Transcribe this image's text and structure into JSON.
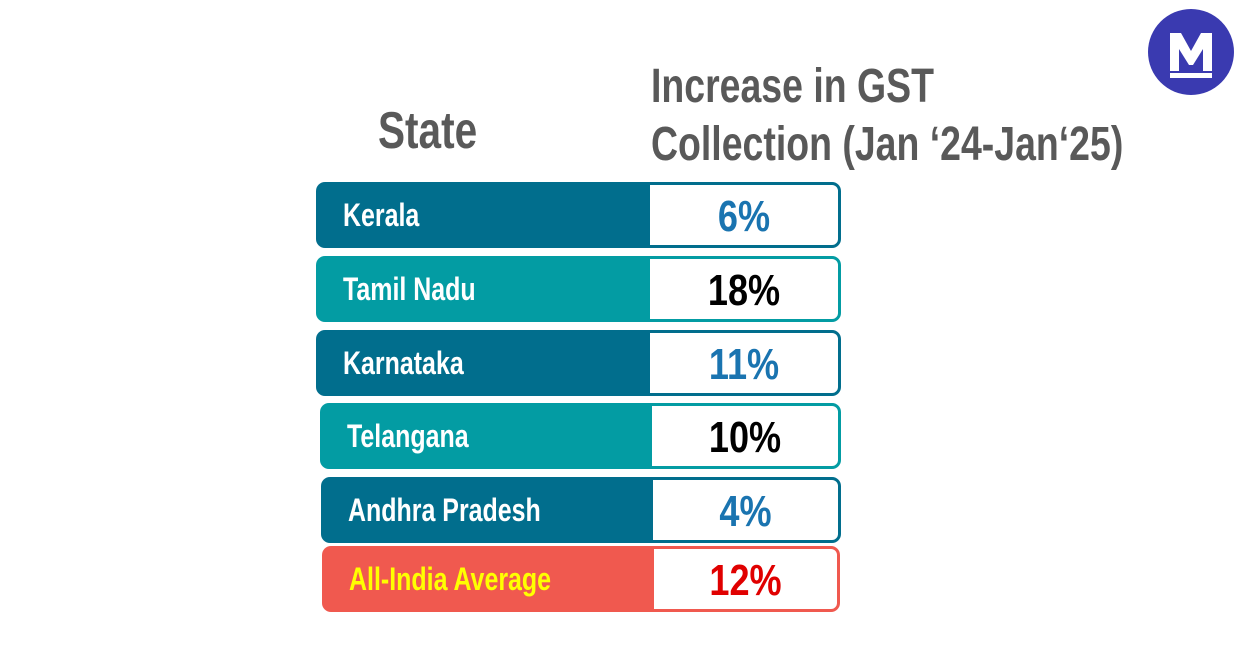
{
  "header": {
    "state_label": "State",
    "gst_label_line1": "Increase in GST",
    "gst_label_line2": "Collection (Jan ‘24-Jan‘25)"
  },
  "colors": {
    "dark_teal": "#016e8d",
    "light_teal": "#039ca3",
    "coral": "#f0594f",
    "blue_value": "#1a74b0",
    "black_value": "#000000",
    "red_value": "#e00000",
    "yellow_label": "#ffff00",
    "header_gray": "#595959",
    "logo_blue": "#3a3ab0"
  },
  "chart_data": {
    "type": "table",
    "columns": [
      "State",
      "Increase in GST Collection (Jan ‘24-Jan‘25)"
    ],
    "rows": [
      {
        "state": "Kerala",
        "value": "6%"
      },
      {
        "state": "Tamil Nadu",
        "value": "18%"
      },
      {
        "state": "Karnataka",
        "value": "11%"
      },
      {
        "state": "Telangana",
        "value": "10%"
      },
      {
        "state": "Andhra Pradesh",
        "value": "4%"
      },
      {
        "state": "All-India Average",
        "value": "12%"
      }
    ]
  },
  "logo": {
    "icon": "m-logo-icon",
    "letter": "M"
  }
}
